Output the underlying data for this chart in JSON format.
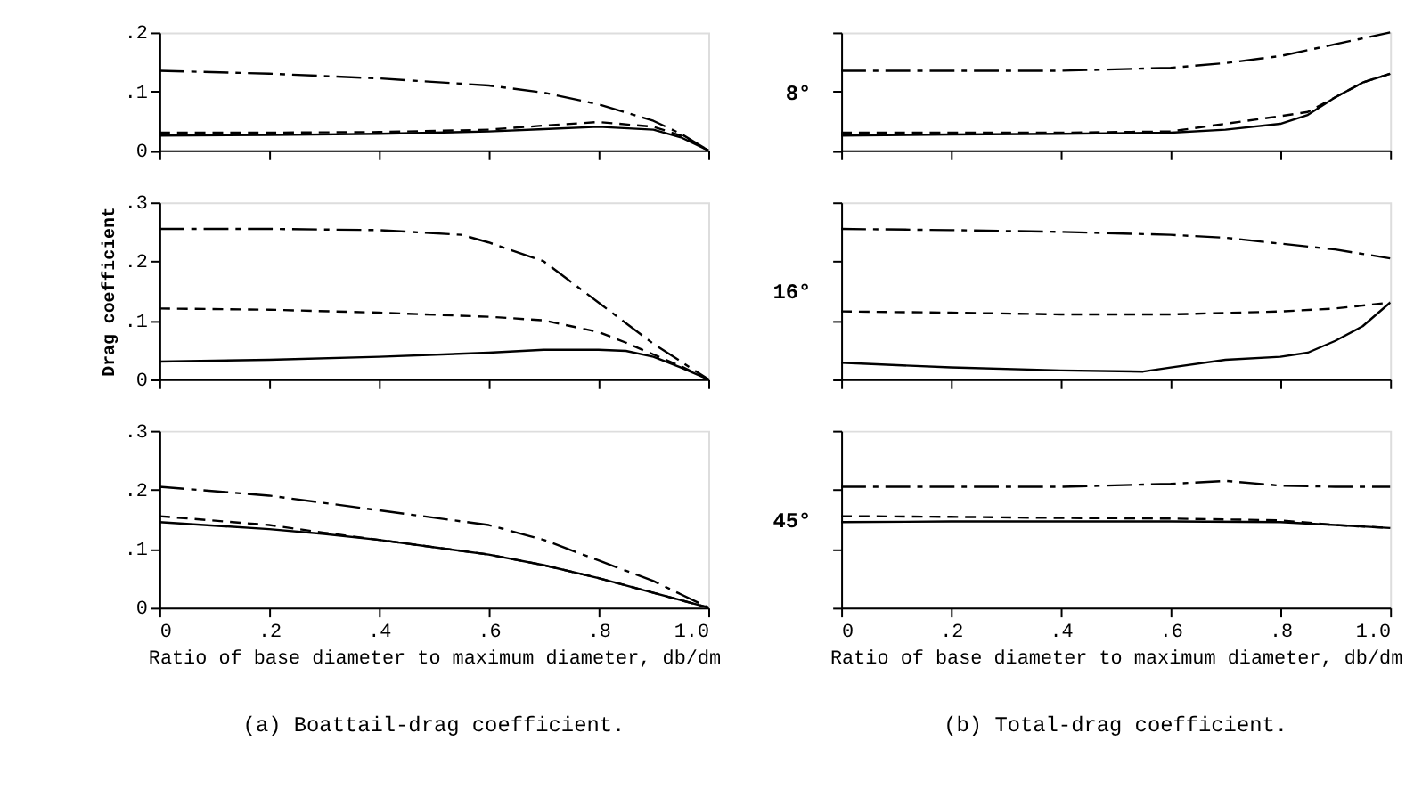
{
  "chart_data": [
    {
      "type": "line",
      "tick_labels": "y",
      "xlim": [
        0,
        1
      ],
      "xticks": [
        {
          "value": 0,
          "label": null
        },
        {
          "value": 0.2,
          "label": null
        },
        {
          "value": 0.4,
          "label": null
        },
        {
          "value": 0.6,
          "label": null
        },
        {
          "value": 0.8,
          "label": null
        },
        {
          "value": 1,
          "label": null
        }
      ],
      "ylim": [
        0,
        0.2
      ],
      "yticks": [
        0,
        {
          "value": 0.1,
          "label": ".1"
        },
        {
          "value": 0.2,
          "label": ".2"
        }
      ],
      "series": [
        {
          "color": "#000000",
          "line_style": "solid",
          "x": [
            0,
            0.2,
            0.4,
            0.6,
            0.7,
            0.8,
            0.9,
            0.95,
            1
          ],
          "values": [
            0.025,
            0.026,
            0.028,
            0.032,
            0.036,
            0.04,
            0.035,
            0.022,
            0
          ]
        },
        {
          "color": "#000000",
          "line_style": "dashed",
          "x": [
            0,
            0.2,
            0.4,
            0.6,
            0.7,
            0.8,
            0.9,
            0.95,
            1
          ],
          "values": [
            0.03,
            0.03,
            0.031,
            0.035,
            0.042,
            0.048,
            0.04,
            0.025,
            0
          ]
        },
        {
          "color": "#000000",
          "line_style": "dashdot",
          "x": [
            0,
            0.2,
            0.4,
            0.6,
            0.7,
            0.8,
            0.9,
            0.95,
            1
          ],
          "values": [
            0.135,
            0.13,
            0.122,
            0.11,
            0.098,
            0.078,
            0.05,
            0.028,
            0
          ]
        }
      ]
    },
    {
      "type": "line",
      "tick_labels": false,
      "ylabel": "8°",
      "xlim": [
        0,
        1
      ],
      "xticks": [
        {
          "value": 0,
          "label": null
        },
        {
          "value": 0.2,
          "label": null
        },
        {
          "value": 0.4,
          "label": null
        },
        {
          "value": 0.6,
          "label": null
        },
        {
          "value": 0.8,
          "label": null
        },
        {
          "value": 1,
          "label": null
        }
      ],
      "ylim": [
        0,
        0.2
      ],
      "yticks": [
        {
          "value": 0,
          "label": null
        },
        {
          "value": 0.1,
          "label": null
        },
        {
          "value": 0.2,
          "label": null
        }
      ],
      "series": [
        {
          "color": "#000000",
          "line_style": "solid",
          "x": [
            0,
            0.2,
            0.4,
            0.6,
            0.7,
            0.8,
            0.85,
            0.9,
            0.95,
            1
          ],
          "values": [
            0.025,
            0.027,
            0.028,
            0.03,
            0.035,
            0.045,
            0.06,
            0.09,
            0.115,
            0.13
          ]
        },
        {
          "color": "#000000",
          "line_style": "dashed",
          "x": [
            0,
            0.2,
            0.4,
            0.6,
            0.7,
            0.8,
            0.85,
            0.9,
            0.95,
            1
          ],
          "values": [
            0.03,
            0.03,
            0.03,
            0.032,
            0.045,
            0.058,
            0.065,
            0.09,
            0.115,
            0.13
          ]
        },
        {
          "color": "#000000",
          "line_style": "dashdot",
          "x": [
            0,
            0.2,
            0.4,
            0.6,
            0.7,
            0.8,
            0.9,
            1
          ],
          "values": [
            0.135,
            0.135,
            0.135,
            0.14,
            0.148,
            0.16,
            0.18,
            0.2
          ]
        }
      ]
    },
    {
      "type": "line",
      "tick_labels": "y",
      "ylabel": "Drag coefficient",
      "xlim": [
        0,
        1
      ],
      "xticks": [
        {
          "value": 0,
          "label": null
        },
        {
          "value": 0.2,
          "label": null
        },
        {
          "value": 0.4,
          "label": null
        },
        {
          "value": 0.6,
          "label": null
        },
        {
          "value": 0.8,
          "label": null
        },
        {
          "value": 1,
          "label": null
        }
      ],
      "ylim": [
        0,
        0.3
      ],
      "yticks": [
        0,
        {
          "value": 0.1,
          "label": ".1"
        },
        {
          "value": 0.2,
          "label": ".2"
        },
        {
          "value": 0.3,
          "label": ".3"
        }
      ],
      "series": [
        {
          "color": "#000000",
          "line_style": "solid",
          "x": [
            0,
            0.2,
            0.4,
            0.6,
            0.7,
            0.8,
            0.85,
            0.9,
            0.95,
            1
          ],
          "values": [
            0.03,
            0.033,
            0.038,
            0.045,
            0.05,
            0.05,
            0.048,
            0.038,
            0.02,
            0
          ]
        },
        {
          "color": "#000000",
          "line_style": "dashed",
          "x": [
            0,
            0.2,
            0.4,
            0.6,
            0.7,
            0.8,
            0.85,
            0.9,
            0.95,
            1
          ],
          "values": [
            0.12,
            0.118,
            0.113,
            0.106,
            0.1,
            0.08,
            0.062,
            0.042,
            0.022,
            0
          ]
        },
        {
          "color": "#000000",
          "line_style": "dashdot",
          "x": [
            0,
            0.2,
            0.4,
            0.55,
            0.6,
            0.7,
            0.8,
            0.9,
            0.95,
            1
          ],
          "values": [
            0.255,
            0.255,
            0.253,
            0.245,
            0.232,
            0.2,
            0.13,
            0.06,
            0.03,
            0
          ]
        }
      ]
    },
    {
      "type": "line",
      "tick_labels": false,
      "ylabel": "16°",
      "xlim": [
        0,
        1
      ],
      "xticks": [
        {
          "value": 0,
          "label": null
        },
        {
          "value": 0.2,
          "label": null
        },
        {
          "value": 0.4,
          "label": null
        },
        {
          "value": 0.6,
          "label": null
        },
        {
          "value": 0.8,
          "label": null
        },
        {
          "value": 1,
          "label": null
        }
      ],
      "ylim": [
        0,
        0.3
      ],
      "yticks": [
        {
          "value": 0,
          "label": null
        },
        {
          "value": 0.1,
          "label": null
        },
        {
          "value": 0.2,
          "label": null
        },
        {
          "value": 0.3,
          "label": null
        }
      ],
      "series": [
        {
          "color": "#000000",
          "line_style": "solid",
          "x": [
            0,
            0.2,
            0.4,
            0.55,
            0.6,
            0.7,
            0.8,
            0.85,
            0.9,
            0.95,
            1
          ],
          "values": [
            0.028,
            0.02,
            0.015,
            0.013,
            0.02,
            0.033,
            0.038,
            0.045,
            0.065,
            0.09,
            0.13
          ]
        },
        {
          "color": "#000000",
          "line_style": "dashed",
          "x": [
            0,
            0.2,
            0.4,
            0.6,
            0.8,
            0.9,
            1
          ],
          "values": [
            0.115,
            0.113,
            0.11,
            0.11,
            0.115,
            0.12,
            0.13
          ]
        },
        {
          "color": "#000000",
          "line_style": "dashdot",
          "x": [
            0,
            0.2,
            0.4,
            0.6,
            0.7,
            0.8,
            0.9,
            1
          ],
          "values": [
            0.255,
            0.253,
            0.25,
            0.245,
            0.24,
            0.23,
            0.22,
            0.205
          ]
        }
      ]
    },
    {
      "type": "line",
      "xlabel": "Ratio of base diameter to maximum diameter, db/dm",
      "annotations": [
        "(a) Boattail-drag coefficient."
      ],
      "xlim": [
        0,
        1
      ],
      "xticks": [
        0,
        {
          "value": 0.2,
          "label": ".2"
        },
        {
          "value": 0.4,
          "label": ".4"
        },
        {
          "value": 0.6,
          "label": ".6"
        },
        {
          "value": 0.8,
          "label": ".8"
        },
        {
          "value": 1,
          "label": "1.0"
        }
      ],
      "ylim": [
        0,
        0.3
      ],
      "yticks": [
        0,
        {
          "value": 0.1,
          "label": ".1"
        },
        {
          "value": 0.2,
          "label": ".2"
        },
        {
          "value": 0.3,
          "label": ".3"
        }
      ],
      "series": [
        {
          "color": "#000000",
          "line_style": "solid",
          "x": [
            0,
            0.2,
            0.3,
            0.4,
            0.6,
            0.7,
            0.8,
            0.9,
            1
          ],
          "values": [
            0.145,
            0.133,
            0.125,
            0.115,
            0.09,
            0.072,
            0.05,
            0.025,
            0
          ]
        },
        {
          "color": "#000000",
          "line_style": "dashed",
          "x": [
            0,
            0.2,
            0.3,
            0.4,
            0.6,
            0.7,
            0.8,
            0.9,
            1
          ],
          "values": [
            0.155,
            0.14,
            0.127,
            0.115,
            0.09,
            0.072,
            0.05,
            0.025,
            0
          ]
        },
        {
          "color": "#000000",
          "line_style": "dashdot",
          "x": [
            0,
            0.2,
            0.4,
            0.6,
            0.7,
            0.8,
            0.9,
            1
          ],
          "values": [
            0.205,
            0.19,
            0.165,
            0.14,
            0.115,
            0.08,
            0.045,
            0
          ]
        }
      ]
    },
    {
      "type": "line",
      "tick_labels": "x",
      "ylabel": "45°",
      "xlabel": "Ratio of base diameter to maximum diameter, db/dm",
      "annotations": [
        "(b) Total-drag coefficient."
      ],
      "xlim": [
        0,
        1
      ],
      "xticks": [
        0,
        {
          "value": 0.2,
          "label": ".2"
        },
        {
          "value": 0.4,
          "label": ".4"
        },
        {
          "value": 0.6,
          "label": ".6"
        },
        {
          "value": 0.8,
          "label": ".8"
        },
        {
          "value": 1,
          "label": "1.0"
        }
      ],
      "ylim": [
        0,
        0.3
      ],
      "yticks": [
        {
          "value": 0,
          "label": null
        },
        {
          "value": 0.1,
          "label": null
        },
        {
          "value": 0.2,
          "label": null
        },
        {
          "value": 0.3,
          "label": null
        }
      ],
      "series": [
        {
          "color": "#000000",
          "line_style": "solid",
          "x": [
            0,
            0.2,
            0.4,
            0.6,
            0.8,
            0.9,
            1
          ],
          "values": [
            0.145,
            0.146,
            0.146,
            0.146,
            0.145,
            0.14,
            0.135
          ]
        },
        {
          "color": "#000000",
          "line_style": "dashed",
          "x": [
            0,
            0.2,
            0.4,
            0.6,
            0.8,
            0.9,
            1
          ],
          "values": [
            0.155,
            0.154,
            0.152,
            0.151,
            0.148,
            0.14,
            0.135
          ]
        },
        {
          "color": "#000000",
          "line_style": "dashdot",
          "x": [
            0,
            0.2,
            0.4,
            0.6,
            0.7,
            0.8,
            0.9,
            1
          ],
          "values": [
            0.205,
            0.205,
            0.205,
            0.21,
            0.215,
            0.207,
            0.205,
            0.205
          ]
        }
      ]
    }
  ]
}
